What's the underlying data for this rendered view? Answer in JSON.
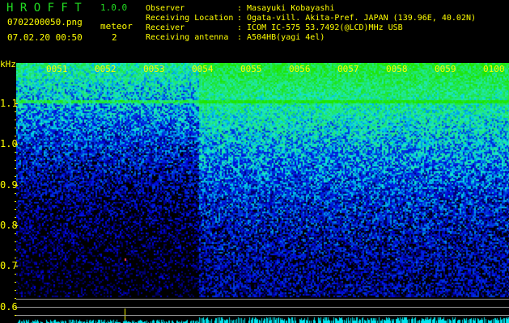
{
  "app": {
    "name": "H R O F F T",
    "version": "1.0.0"
  },
  "file": {
    "name": "0702200050.png",
    "datetime": "07.02.20 00:50"
  },
  "meteor": {
    "label": "meteor",
    "count": "2"
  },
  "info": [
    {
      "label": "Observer",
      "value": ": Masayuki Kobayashi"
    },
    {
      "label": "Receiving Location",
      "value": ": Ogata-vill. Akita-Pref. JAPAN (139.96E, 40.02N)"
    },
    {
      "label": "Receiver",
      "value": ": ICOM IC-575 53.7492(@LCD)MHz USB"
    },
    {
      "label": "Receiving antenna",
      "value": ": A504HB(yagi 4el)"
    }
  ],
  "axis": {
    "unit": "kHz",
    "time_ticks": [
      "0051",
      "0052",
      "0053",
      "0054",
      "0055",
      "0056",
      "0057",
      "0058",
      "0059",
      "0100"
    ],
    "freq_ticks": [
      "1.1",
      "1.0",
      "0.9",
      "0.8",
      "0.7",
      "0.6"
    ]
  },
  "colors": {
    "text": "#ffff00",
    "title": "#22dd22",
    "bars": "#00e5ee",
    "reference_lines": "#9a9a9a"
  }
}
